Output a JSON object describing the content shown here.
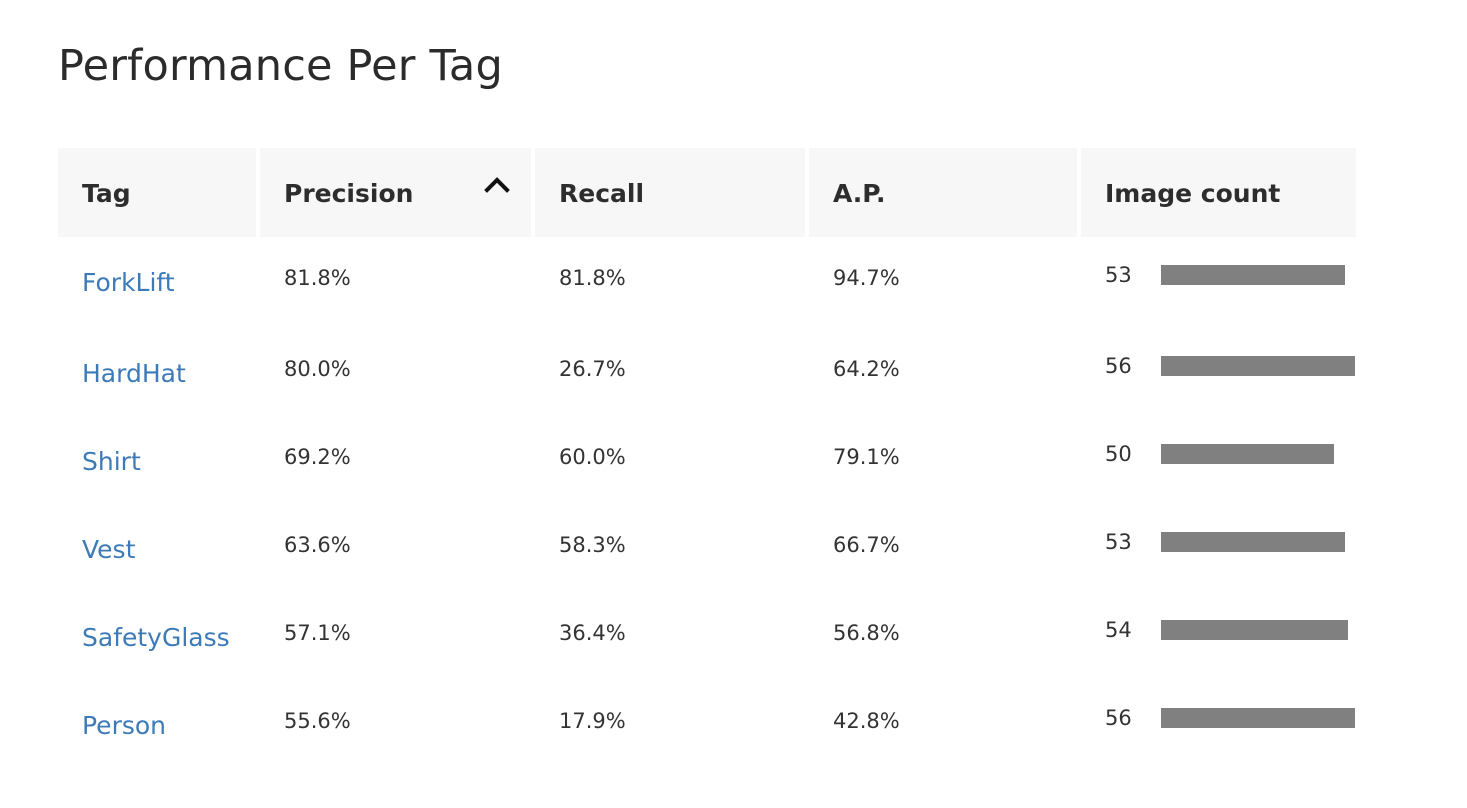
{
  "page": {
    "title": "Performance Per Tag"
  },
  "table": {
    "headers": {
      "tag": "Tag",
      "precision": "Precision",
      "recall": "Recall",
      "ap": "A.P.",
      "image_count": "Image count"
    },
    "sort": {
      "column": "precision",
      "icon": "chevron-up-icon"
    },
    "bar_color": "#808080",
    "link_color": "#3d7ab8",
    "header_bg": "#f7f7f7",
    "max_image_count": 56,
    "rows": [
      {
        "tag": "ForkLift",
        "precision": "81.8%",
        "recall": "81.8%",
        "ap": "94.7%",
        "image_count": 53
      },
      {
        "tag": "HardHat",
        "precision": "80.0%",
        "recall": "26.7%",
        "ap": "64.2%",
        "image_count": 56
      },
      {
        "tag": "Shirt",
        "precision": "69.2%",
        "recall": "60.0%",
        "ap": "79.1%",
        "image_count": 50
      },
      {
        "tag": "Vest",
        "precision": "63.6%",
        "recall": "58.3%",
        "ap": "66.7%",
        "image_count": 53
      },
      {
        "tag": "SafetyGlass",
        "precision": "57.1%",
        "recall": "36.4%",
        "ap": "56.8%",
        "image_count": 54
      },
      {
        "tag": "Person",
        "precision": "55.6%",
        "recall": "17.9%",
        "ap": "42.8%",
        "image_count": 56
      }
    ]
  }
}
